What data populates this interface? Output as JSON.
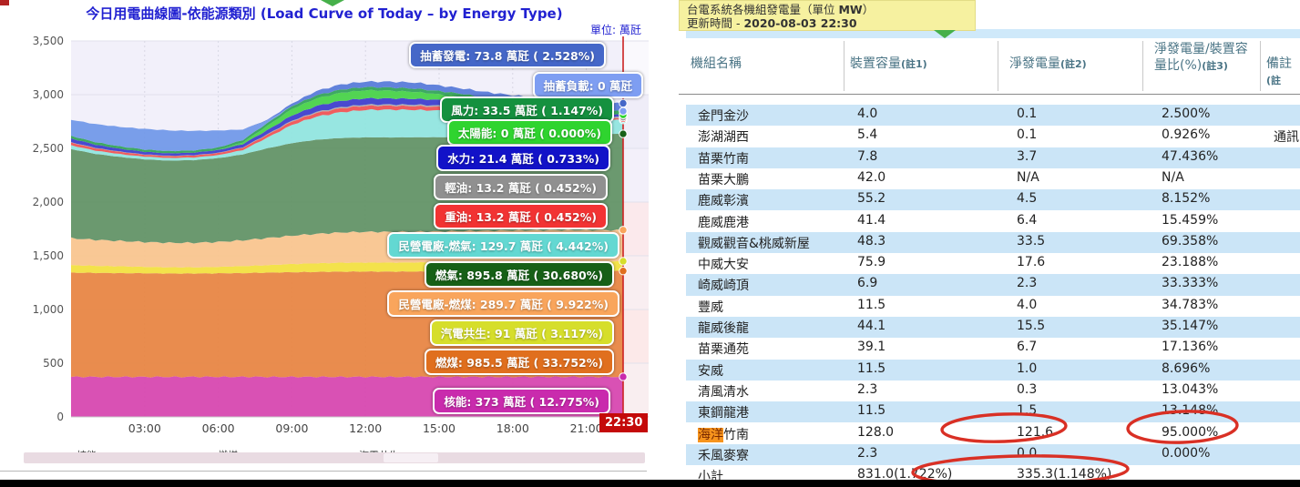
{
  "left_panel": {
    "title": "今日用電曲線圖-依能源類別 (Load Curve of Today – by Energy Type)",
    "unit_label": "單位: 萬瓩",
    "current_time_badge": "22:30",
    "legend_items": [
      {
        "label": "核能",
        "color": "#cc22aa"
      },
      {
        "label": "燃煤",
        "color": "#e2701d"
      },
      {
        "label": "汽電共生",
        "color": "#dfe02a"
      }
    ],
    "chart_data": {
      "type": "area",
      "stacked": true,
      "title": "今日用電曲線圖-依能源類別 (Load Curve of Today – by Energy Type)",
      "ylabel_unit": "萬瓩",
      "xlim": [
        0,
        22.5
      ],
      "ylim": [
        0,
        3500
      ],
      "grid": true,
      "x_tick_labels": [
        "03:00",
        "06:00",
        "09:00",
        "12:00",
        "15:00",
        "18:00",
        "21:00"
      ],
      "x_tick_hours": [
        3,
        6,
        9,
        12,
        15,
        18,
        21
      ],
      "y_ticks": [
        {
          "v": 0,
          "label": "0"
        },
        {
          "v": 500,
          "label": "500"
        },
        {
          "v": 1000,
          "label": "1,000"
        },
        {
          "v": 1500,
          "label": "1,500"
        },
        {
          "v": 2000,
          "label": "2,000"
        },
        {
          "v": 2500,
          "label": "2,500"
        },
        {
          "v": 3000,
          "label": "3,000"
        },
        {
          "v": 3500,
          "label": "3,500"
        }
      ],
      "x_hours": [
        0,
        1,
        2,
        3,
        4,
        5,
        6,
        7,
        8,
        9,
        10,
        11,
        12,
        13,
        14,
        15,
        16,
        17,
        18,
        19,
        20,
        21,
        22,
        22.5
      ],
      "series": [
        {
          "id": "nuclear",
          "name": "核能",
          "color": "#d743ae",
          "dot": "#c92bad",
          "values": [
            373,
            373,
            373,
            373,
            373,
            373,
            373,
            373,
            373,
            373,
            373,
            373,
            373,
            373,
            373,
            373,
            373,
            373,
            373,
            373,
            373,
            373,
            373,
            373
          ]
        },
        {
          "id": "coal",
          "name": "燃煤",
          "color": "#e8833f",
          "dot": "#e06f1e",
          "values": [
            970,
            968,
            966,
            964,
            962,
            962,
            964,
            966,
            970,
            974,
            977,
            979,
            980,
            980,
            980,
            981,
            982,
            983,
            984,
            985,
            985,
            985,
            985,
            985.5
          ]
        },
        {
          "id": "cogen",
          "name": "汽電共生",
          "color": "#f3e13c",
          "dot": "#d6de2b",
          "values": [
            70,
            66,
            63,
            60,
            58,
            58,
            60,
            65,
            70,
            76,
            80,
            83,
            84,
            84,
            85,
            86,
            88,
            89,
            90,
            91,
            91,
            91,
            91,
            91
          ]
        },
        {
          "id": "ipp_coal",
          "name": "民營電廠-燃煤",
          "color": "#fac48c",
          "dot": "#f9a55c",
          "values": [
            250,
            242,
            236,
            231,
            228,
            228,
            232,
            240,
            252,
            264,
            274,
            282,
            286,
            286,
            287,
            287,
            288,
            288,
            289,
            290,
            290,
            290,
            290,
            289.7
          ]
        },
        {
          "id": "lng",
          "name": "燃氣",
          "color": "#5f9163",
          "dot": "#176017",
          "values": [
            830,
            800,
            782,
            770,
            765,
            770,
            780,
            800,
            835,
            862,
            876,
            880,
            880,
            879,
            878,
            877,
            877,
            879,
            884,
            890,
            893,
            895,
            896,
            895.8
          ]
        },
        {
          "id": "ipp_gas",
          "name": "民營電廠-燃氣",
          "color": "#8fe5de",
          "dot": "#63d8d2",
          "values": [
            35,
            30,
            27,
            25,
            24,
            25,
            28,
            40,
            100,
            170,
            215,
            240,
            255,
            258,
            255,
            248,
            238,
            222,
            200,
            178,
            158,
            144,
            133,
            129.7
          ]
        },
        {
          "id": "heavy_oil",
          "name": "重油",
          "color": "#f05050",
          "dot": "#f23333",
          "values": [
            25,
            22,
            20,
            18,
            18,
            18,
            19,
            22,
            26,
            31,
            35,
            37,
            38,
            37,
            36,
            34,
            31,
            27,
            23,
            20,
            17,
            15,
            14,
            13.2
          ]
        },
        {
          "id": "light_oil",
          "name": "輕油",
          "color": "#a9a9a9",
          "dot": "#909090",
          "values": [
            4,
            4,
            3,
            3,
            3,
            3,
            3,
            4,
            6,
            8,
            10,
            11,
            12,
            12,
            13,
            13,
            13,
            13,
            13,
            13,
            13,
            13,
            13,
            13.2
          ]
        },
        {
          "id": "hydro",
          "name": "水力",
          "color": "#3b3bcc",
          "dot": "#1212c8",
          "values": [
            35,
            30,
            26,
            24,
            23,
            23,
            25,
            30,
            38,
            48,
            55,
            58,
            58,
            56,
            54,
            52,
            49,
            45,
            40,
            35,
            29,
            24,
            22,
            21.4
          ]
        },
        {
          "id": "solar",
          "name": "太陽能",
          "color": "#44d344",
          "dot": "#2fd42f",
          "values": [
            0,
            0,
            0,
            0,
            0,
            0,
            2,
            15,
            40,
            60,
            70,
            75,
            75,
            72,
            65,
            52,
            35,
            15,
            3,
            0,
            0,
            0,
            0,
            0
          ]
        },
        {
          "id": "wind",
          "name": "風力",
          "color": "#2fa355",
          "dot": "#15913f",
          "values": [
            24,
            23,
            22,
            21,
            21,
            21,
            22,
            23,
            25,
            27,
            29,
            30,
            30,
            30,
            31,
            31,
            32,
            32,
            33,
            34,
            34,
            34,
            34,
            33.5
          ]
        },
        {
          "id": "ps_load",
          "name": "抽蓄負載",
          "color": "#6f97e8",
          "dot": "#7e9ef2",
          "values": [
            150,
            168,
            182,
            192,
            192,
            182,
            158,
            98,
            24,
            0,
            0,
            0,
            0,
            0,
            0,
            0,
            0,
            0,
            0,
            0,
            0,
            0,
            0,
            0
          ]
        },
        {
          "id": "ps_gen",
          "name": "抽蓄發電",
          "color": "#5578d8",
          "dot": "#4567c8",
          "values": [
            0,
            0,
            0,
            0,
            0,
            0,
            0,
            0,
            6,
            25,
            40,
            48,
            50,
            54,
            56,
            52,
            50,
            56,
            62,
            62,
            64,
            68,
            72,
            73.8
          ]
        }
      ],
      "end_labels": [
        {
          "text": "抽蓄發電: 73.8 萬瓩 ( 2.528%)",
          "color": "#4567c8"
        },
        {
          "text": "抽蓄負載: 0 萬瓩",
          "color": "#7e9ef2"
        },
        {
          "text": "風力: 33.5 萬瓩 ( 1.147%)",
          "color": "#15913f"
        },
        {
          "text": "太陽能: 0 萬瓩 ( 0.000%)",
          "color": "#2fd42f"
        },
        {
          "text": "水力: 21.4 萬瓩 ( 0.733%)",
          "color": "#1212c8"
        },
        {
          "text": "輕油: 13.2 萬瓩 ( 0.452%)",
          "color": "#909090"
        },
        {
          "text": "重油: 13.2 萬瓩 ( 0.452%)",
          "color": "#f23333"
        },
        {
          "text": "民營電廠-燃氣: 129.7 萬瓩 ( 4.442%)",
          "color": "#63d8d2"
        },
        {
          "text": "燃氣: 895.8 萬瓩 ( 30.680%)",
          "color": "#176017"
        },
        {
          "text": "民營電廠-燃煤: 289.7 萬瓩 ( 9.922%)",
          "color": "#f9a55c"
        },
        {
          "text": "汽電共生: 91 萬瓩 ( 3.117%)",
          "color": "#d6de2b"
        },
        {
          "text": "燃煤: 985.5 萬瓩 ( 33.752%)",
          "color": "#e06f1e"
        },
        {
          "text": "核能: 373 萬瓩 ( 12.775%)",
          "color": "#c92bad"
        }
      ]
    }
  },
  "right_panel": {
    "tooltip": {
      "line1_pre": "台電系統各機組發電量（單位 ",
      "line1_bold": "MW",
      "line1_post": "）",
      "line2_prefix": "更新時間 - ",
      "line2_time": "2020-08-03 22:30"
    },
    "table": {
      "columns": [
        {
          "label": "機組名稱",
          "note": ""
        },
        {
          "label": "裝置容量",
          "note": "(註1)"
        },
        {
          "label": "淨發電量",
          "note": "(註2)"
        },
        {
          "label": "淨發電量/裝置容量比(%)",
          "note": "(註3)"
        },
        {
          "label": "備註",
          "note": "(註"
        }
      ],
      "rows": [
        {
          "name": "金門金沙",
          "capacity": "4.0",
          "net": "0.1",
          "ratio": "2.500%",
          "remark": ""
        },
        {
          "name": "澎湖湖西",
          "capacity": "5.4",
          "net": "0.1",
          "ratio": "0.926%",
          "remark": "通訊中"
        },
        {
          "name": "苗栗竹南",
          "capacity": "7.8",
          "net": "3.7",
          "ratio": "47.436%",
          "remark": ""
        },
        {
          "name": "苗栗大鵬",
          "capacity": "42.0",
          "net": "N/A",
          "ratio": "N/A",
          "remark": ""
        },
        {
          "name": "鹿威彰濱",
          "capacity": "55.2",
          "net": "4.5",
          "ratio": "8.152%",
          "remark": ""
        },
        {
          "name": "鹿威鹿港",
          "capacity": "41.4",
          "net": "6.4",
          "ratio": "15.459%",
          "remark": ""
        },
        {
          "name": "觀威觀音&桃威新屋",
          "capacity": "48.3",
          "net": "33.5",
          "ratio": "69.358%",
          "remark": ""
        },
        {
          "name": "中威大安",
          "capacity": "75.9",
          "net": "17.6",
          "ratio": "23.188%",
          "remark": ""
        },
        {
          "name": "崎威崎頂",
          "capacity": "6.9",
          "net": "2.3",
          "ratio": "33.333%",
          "remark": ""
        },
        {
          "name": "豐威",
          "capacity": "11.5",
          "net": "4.0",
          "ratio": "34.783%",
          "remark": ""
        },
        {
          "name": "龍威後龍",
          "capacity": "44.1",
          "net": "15.5",
          "ratio": "35.147%",
          "remark": ""
        },
        {
          "name": "苗栗通苑",
          "capacity": "39.1",
          "net": "6.7",
          "ratio": "17.136%",
          "remark": ""
        },
        {
          "name": "安威",
          "capacity": "11.5",
          "net": "1.0",
          "ratio": "8.696%",
          "remark": ""
        },
        {
          "name": "清風清水",
          "capacity": "2.3",
          "net": "0.3",
          "ratio": "13.043%",
          "remark": ""
        },
        {
          "name": "東鋼龍港",
          "capacity": "11.5",
          "net": "1.5",
          "ratio": "13.148%",
          "remark": ""
        },
        {
          "name": "海洋竹南",
          "capacity": "128.0",
          "net": "121.6",
          "ratio": "95.000%",
          "remark": "",
          "highlight": "海洋"
        },
        {
          "name": "禾風麥寮",
          "capacity": "2.3",
          "net": "0.0",
          "ratio": "0.000%",
          "remark": ""
        },
        {
          "name": "小計",
          "capacity": "831.0(1.722%)",
          "net": "335.3(1.148%)",
          "ratio": "",
          "remark": ""
        }
      ],
      "circled_values": [
        "121.6",
        "95.000%",
        "335.3(1.148%)"
      ],
      "annotation_color": "#d93025"
    }
  }
}
